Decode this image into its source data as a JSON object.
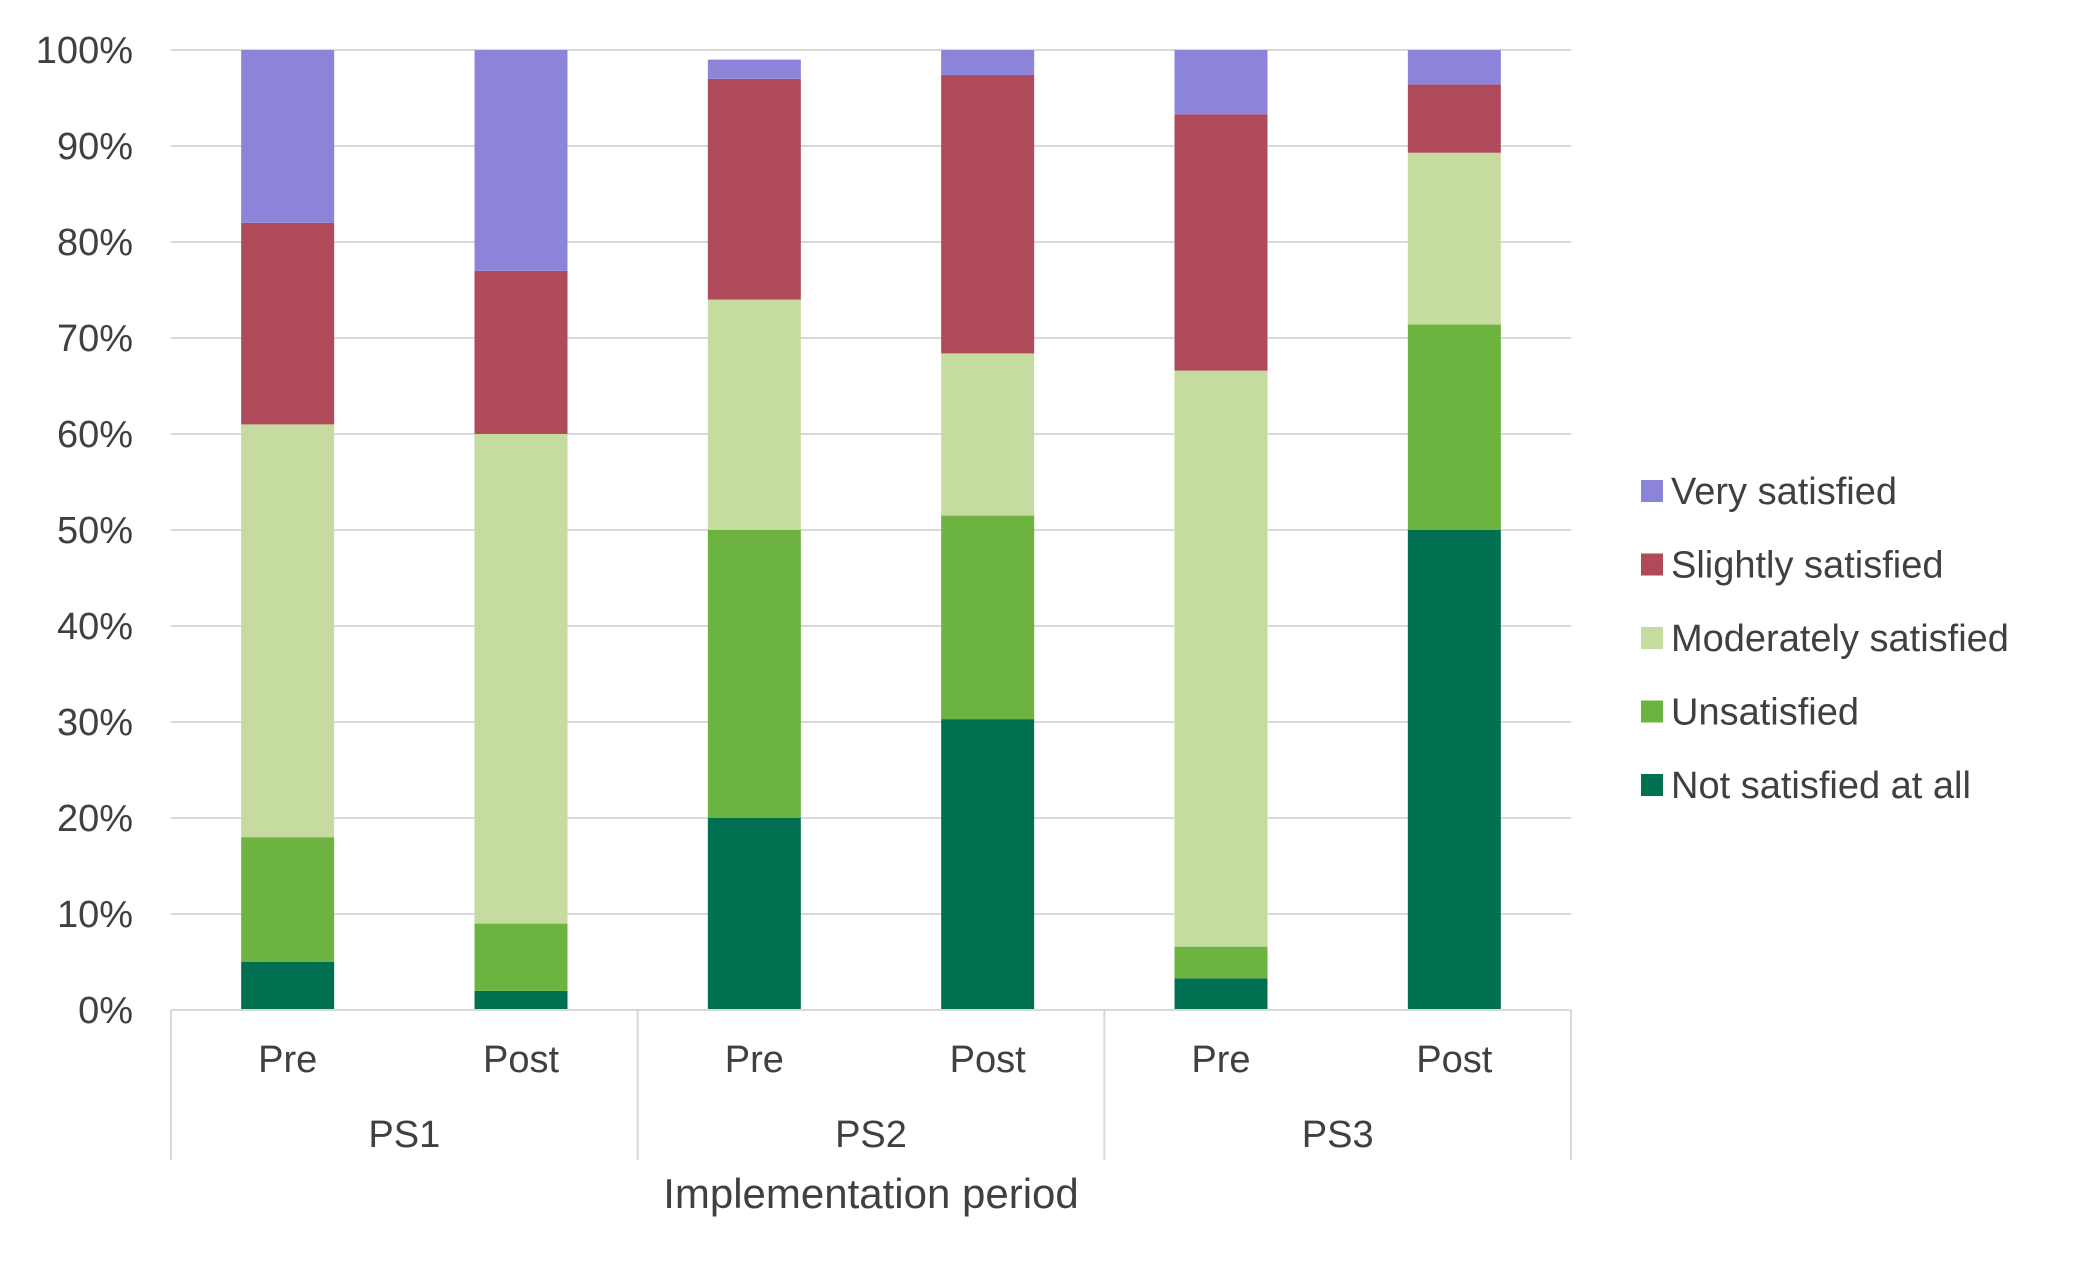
{
  "chart_data": {
    "type": "bar",
    "stacked": true,
    "xlabel": "Implementation period",
    "ylabel": "",
    "ylim": [
      0,
      100
    ],
    "y_ticks": [
      "0%",
      "10%",
      "20%",
      "30%",
      "40%",
      "50%",
      "60%",
      "70%",
      "80%",
      "90%",
      "100%"
    ],
    "grid": true,
    "legend_position": "right",
    "groups": [
      {
        "label": "PS1",
        "categories": [
          "Pre",
          "Post"
        ]
      },
      {
        "label": "PS2",
        "categories": [
          "Pre",
          "Post"
        ]
      },
      {
        "label": "PS3",
        "categories": [
          "Pre",
          "Post"
        ]
      }
    ],
    "series": [
      {
        "name": "Not satisfied at all",
        "color": "#007050",
        "values": [
          5,
          2,
          20,
          30.3,
          3.3,
          50
        ]
      },
      {
        "name": "Unsatisfied",
        "color": "#6db33f",
        "values": [
          13,
          7,
          30,
          21.2,
          3.3,
          21.4
        ]
      },
      {
        "name": "Moderately satisfied",
        "color": "#c5dba0",
        "values": [
          43,
          51,
          24,
          16.9,
          60,
          17.9
        ]
      },
      {
        "name": "Slightly satisfied",
        "color": "#ae4a5a",
        "values": [
          21,
          17,
          23,
          29,
          26.7,
          7.1
        ]
      },
      {
        "name": "Very satisfied",
        "color": "#8b84d9",
        "values": [
          18,
          23,
          2,
          2.6,
          6.7,
          3.6
        ]
      }
    ],
    "legend_order": [
      "Very satisfied",
      "Slightly satisfied",
      "Moderately satisfied",
      "Unsatisfied",
      "Not satisfied at all"
    ]
  },
  "colors": {
    "gridline": "#d9d9d9",
    "axis": "#d9d9d9",
    "text": "#404040"
  }
}
